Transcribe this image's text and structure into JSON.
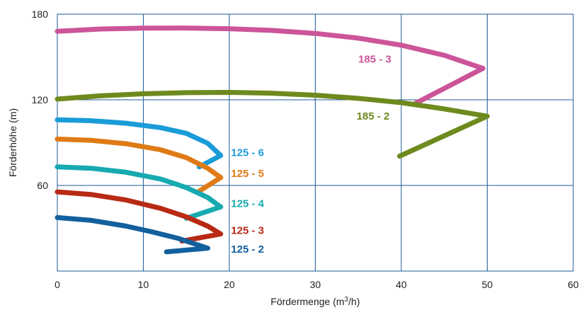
{
  "chart_data": {
    "type": "line",
    "title": "",
    "xlabel": {
      "prefix": "Fördermenge (m",
      "sup": "3",
      "suffix": "/h)"
    },
    "ylabel": "Förderhöhe (m)",
    "xlim": [
      0,
      60
    ],
    "ylim": [
      0,
      180
    ],
    "xticks": [
      0,
      10,
      20,
      30,
      40,
      50,
      60
    ],
    "yticks": [
      60,
      120,
      180
    ],
    "x_tick_labels": [
      "0",
      "10",
      "20",
      "30",
      "40",
      "50",
      "60"
    ],
    "y_tick_labels": [
      "60",
      "120",
      "180"
    ],
    "x_grid": [
      10,
      20,
      30,
      40,
      50
    ],
    "y_grid": [
      60,
      120
    ],
    "grid": true,
    "legend": "none",
    "series": [
      {
        "name": "185 - 3",
        "color": "#cc5599",
        "label_at": [
          35,
          146
        ],
        "points": [
          [
            0,
            168
          ],
          [
            5,
            169.6
          ],
          [
            10,
            170.2
          ],
          [
            15,
            170.3
          ],
          [
            20,
            169.8
          ],
          [
            25,
            168.6
          ],
          [
            30,
            166.5
          ],
          [
            35,
            163.2
          ],
          [
            40,
            158.3
          ],
          [
            45,
            151.2
          ],
          [
            49.5,
            142
          ],
          [
            41.5,
            117
          ]
        ]
      },
      {
        "name": "185 - 2",
        "color": "#6e8a1e",
        "label_at": [
          34.8,
          106
        ],
        "points": [
          [
            0,
            120.5
          ],
          [
            5,
            122.8
          ],
          [
            10,
            124.2
          ],
          [
            15,
            125
          ],
          [
            20,
            125.2
          ],
          [
            25,
            124.6
          ],
          [
            30,
            123.2
          ],
          [
            35,
            121
          ],
          [
            40,
            118
          ],
          [
            45,
            113.6
          ],
          [
            50,
            108.5
          ],
          [
            39.8,
            80.5
          ]
        ]
      },
      {
        "name": "125 - 6",
        "color": "#1a9cd8",
        "label_at": [
          20.2,
          80.5
        ],
        "points": [
          [
            0,
            106
          ],
          [
            4,
            105.3
          ],
          [
            8,
            103.6
          ],
          [
            12,
            100.5
          ],
          [
            15,
            96.5
          ],
          [
            17.5,
            89.5
          ],
          [
            19,
            81
          ],
          [
            16.5,
            73
          ]
        ]
      },
      {
        "name": "125 - 5",
        "color": "#df7a16",
        "label_at": [
          20.2,
          66
        ],
        "points": [
          [
            0,
            92.5
          ],
          [
            4,
            91.6
          ],
          [
            8,
            89.2
          ],
          [
            12,
            85
          ],
          [
            15,
            79.5
          ],
          [
            17.5,
            72
          ],
          [
            19,
            65.5
          ],
          [
            16.5,
            56
          ]
        ]
      },
      {
        "name": "125 - 4",
        "color": "#17aab0",
        "label_at": [
          20.2,
          45
        ],
        "points": [
          [
            0,
            73
          ],
          [
            4,
            72
          ],
          [
            8,
            69.2
          ],
          [
            12,
            64.5
          ],
          [
            15,
            58.5
          ],
          [
            17.5,
            51.5
          ],
          [
            19,
            45
          ],
          [
            15,
            37
          ]
        ]
      },
      {
        "name": "125 - 3",
        "color": "#b82a14",
        "label_at": [
          20.2,
          26
        ],
        "points": [
          [
            0,
            55.5
          ],
          [
            4,
            53.6
          ],
          [
            8,
            49.8
          ],
          [
            12,
            44
          ],
          [
            15,
            38
          ],
          [
            17.5,
            31.5
          ],
          [
            19,
            26
          ],
          [
            14.5,
            21
          ]
        ]
      },
      {
        "name": "125 - 2",
        "color": "#12609e",
        "label_at": [
          20.2,
          13
        ],
        "points": [
          [
            0,
            37.5
          ],
          [
            4,
            35.5
          ],
          [
            8,
            31.5
          ],
          [
            11,
            27.5
          ],
          [
            14,
            23
          ],
          [
            17.5,
            16
          ],
          [
            12.7,
            13.5
          ]
        ]
      }
    ]
  }
}
